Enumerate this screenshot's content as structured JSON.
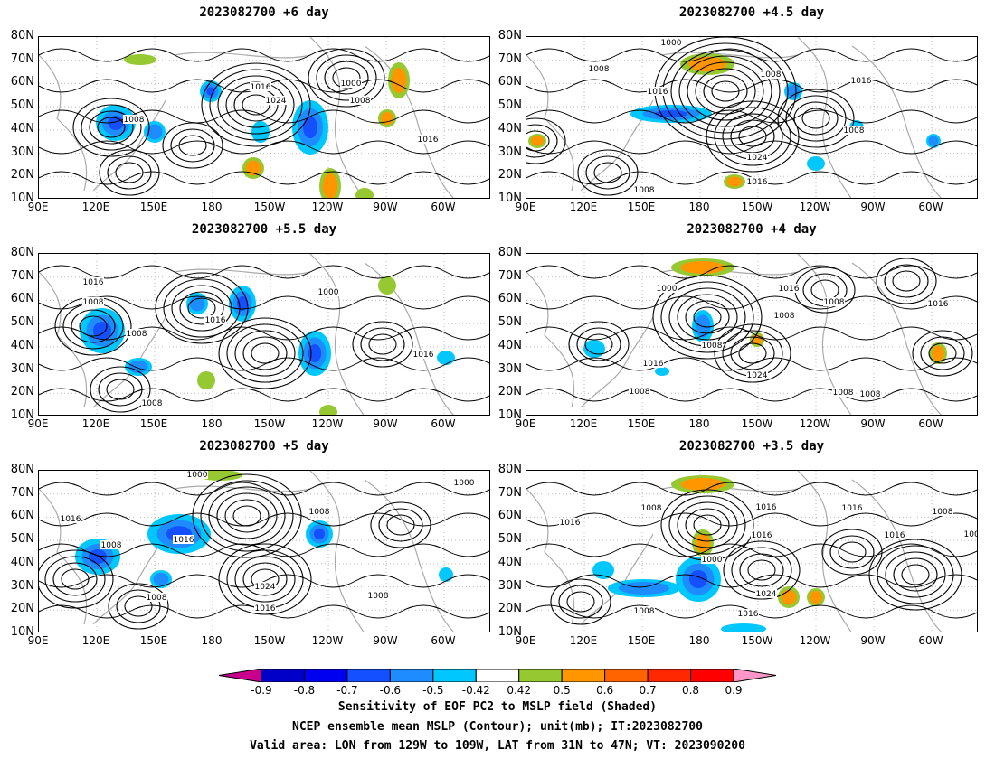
{
  "panels": [
    {
      "title": "2023082700  +6 day"
    },
    {
      "title": "2023082700  +4.5 day"
    },
    {
      "title": "2023082700  +5.5 day"
    },
    {
      "title": "2023082700  +4 day"
    },
    {
      "title": "2023082700  +5 day"
    },
    {
      "title": "2023082700  +3.5 day"
    }
  ],
  "axes": {
    "lat_labels": [
      "80N",
      "70N",
      "60N",
      "50N",
      "40N",
      "30N",
      "20N",
      "10N"
    ],
    "lon_labels": [
      "90E",
      "120E",
      "150E",
      "180",
      "150W",
      "120W",
      "90W",
      "60W"
    ]
  },
  "contour_labels": {
    "p0": [
      "1016",
      "1024",
      "1000",
      "1008",
      "1008",
      "1016"
    ],
    "p1": [
      "1000",
      "1008",
      "1016",
      "1008",
      "1016",
      "1008",
      "1024",
      "1016",
      "1008"
    ],
    "p2": [
      "1008",
      "1016",
      "1016",
      "1008",
      "1000",
      "1016",
      "1008"
    ],
    "p3": [
      "1000",
      "1016",
      "1008",
      "1016",
      "1008",
      "1008",
      "1016",
      "1024",
      "1008",
      "1008",
      "1008"
    ],
    "p4": [
      "1000",
      "1000",
      "1016",
      "1008",
      "1016",
      "1008",
      "1024",
      "1016",
      "1008",
      "1008"
    ],
    "p5": [
      "1016",
      "1008",
      "1008",
      "1016",
      "1016",
      "1016",
      "1008",
      "1000",
      "1024",
      "1016",
      "1008",
      "1016",
      "1008"
    ]
  },
  "colorbar": {
    "ticks": [
      "-0.9",
      "-0.8",
      "-0.7",
      "-0.6",
      "-0.5",
      "-0.42",
      "0.42",
      "0.5",
      "0.6",
      "0.7",
      "0.8",
      "0.9"
    ],
    "colors": [
      "#c8008c",
      "#0000c8",
      "#0000f0",
      "#1450ff",
      "#1e8cff",
      "#00c8ff",
      "#ffffff",
      "#96c832",
      "#ff9600",
      "#ff6400",
      "#ff2800",
      "#ff0000",
      "#ff96c8"
    ]
  },
  "captions": [
    "Sensitivity of EOF PC2 to MSLP field (Shaded)",
    "NCEP ensemble mean MSLP (Contour); unit(mb); IT:2023082700",
    "Valid area: LON from 129W to 109W, LAT from 31N to 47N; VT: 2023090200"
  ]
}
